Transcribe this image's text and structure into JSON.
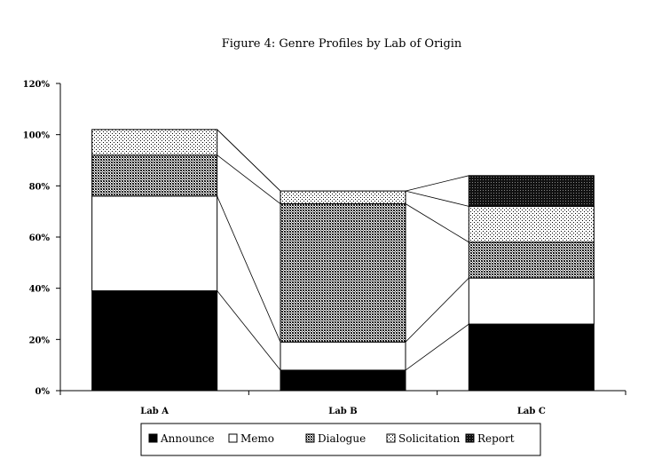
{
  "chart_data": {
    "type": "bar",
    "stacked": true,
    "title": "Figure 4: Genre Profiles by Lab of Origin",
    "xlabel": "",
    "ylabel": "",
    "categories": [
      "Lab A",
      "Lab B",
      "Lab C"
    ],
    "ylim": [
      0,
      120
    ],
    "yticks": [
      "0%",
      "20%",
      "40%",
      "60%",
      "80%",
      "100%",
      "120%"
    ],
    "grid": false,
    "legend": "bottom",
    "series": [
      {
        "name": "Announce",
        "values": [
          39,
          8,
          26
        ],
        "pattern": "solid-black"
      },
      {
        "name": "Memo",
        "values": [
          37,
          11,
          18
        ],
        "pattern": "white"
      },
      {
        "name": "Dialogue",
        "values": [
          16,
          54,
          14
        ],
        "pattern": "crosshatch"
      },
      {
        "name": "Solicitation",
        "values": [
          10,
          5,
          14
        ],
        "pattern": "dots"
      },
      {
        "name": "Report",
        "values": [
          0,
          0,
          12
        ],
        "pattern": "dark-crosshatch"
      }
    ]
  }
}
